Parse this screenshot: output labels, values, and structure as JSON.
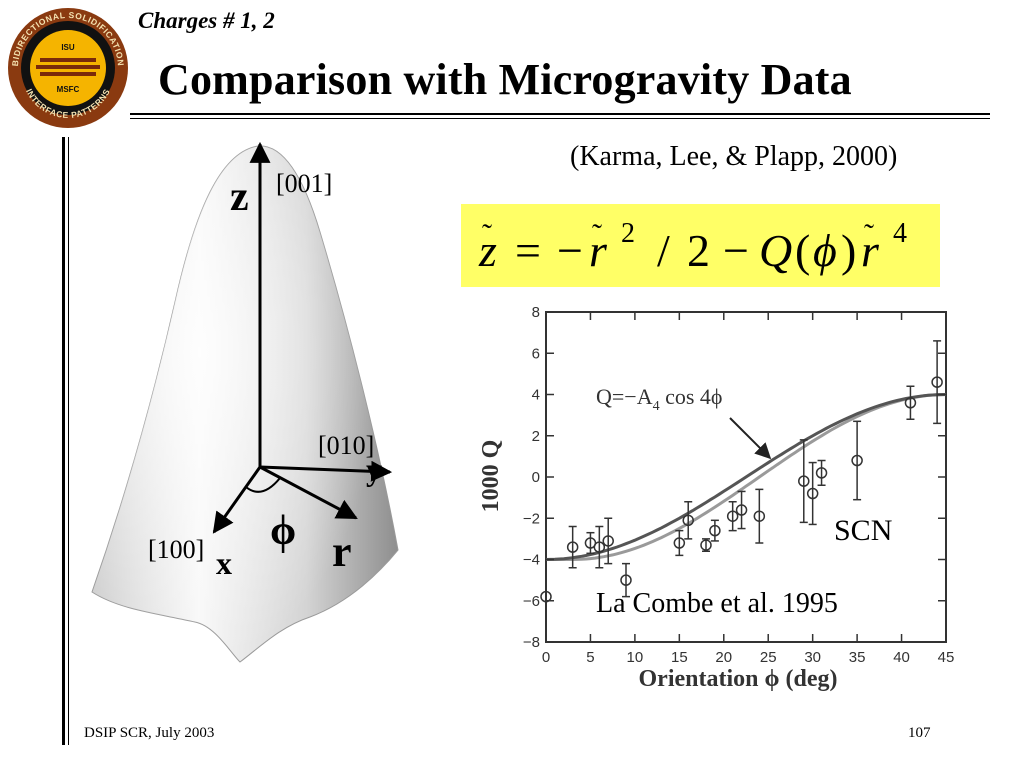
{
  "header": {
    "section_label": "Charges # 1, 2",
    "title": "Comparison with Microgravity Data",
    "logo": {
      "ring_text_top": "BIDIRECTIONAL SOLIDIFICATION",
      "ring_text_bottom": "INTERFACE PATTERNS",
      "center_top": "ISU",
      "center_bottom": "MSFC",
      "ring_color": "#8a3a10",
      "inner_color": "#f5b400"
    }
  },
  "citation": "(Karma, Lee, & Plapp, 2000)",
  "formula": {
    "background": "#ffff66",
    "z": "z",
    "equals": "=",
    "minus": "−",
    "r": "r",
    "exp2": "2",
    "slash": "/",
    "two": "2",
    "Q": "Q",
    "lparen": "(",
    "phi": "ϕ",
    "rparen": ")",
    "exp4": "4",
    "tilde": "˜"
  },
  "dendrite_figure": {
    "z_label": "z",
    "dir_001": "[001]",
    "dir_010": "[010]",
    "y_label": "y",
    "phi_label": "ϕ",
    "r_label": "r",
    "dir_100": "[100]",
    "x_label": "x"
  },
  "chart_data": {
    "type": "scatter",
    "xlabel": "Orientation ϕ (deg)",
    "ylabel": "1000 Q",
    "xlim": [
      0,
      45
    ],
    "ylim": [
      -8,
      8
    ],
    "x_ticks": [
      "0",
      "5",
      "10",
      "15",
      "20",
      "25",
      "30",
      "35",
      "40",
      "45"
    ],
    "y_ticks": [
      "−8",
      "−6",
      "−4",
      "−2",
      "0",
      "2",
      "4",
      "6",
      "8"
    ],
    "curve_label": "Q=−A",
    "curve_label_sub": "4",
    "curve_label_tail": " cos 4ϕ",
    "annotation_scn": "SCN",
    "annotation_source": "La Combe et al. 1995",
    "curves": [
      {
        "style": "dark",
        "expr": "-4cos(4phi)"
      },
      {
        "style": "light",
        "expr": "shifted"
      }
    ],
    "points": [
      {
        "x": 0,
        "y": -5.8,
        "err": 0
      },
      {
        "x": 3,
        "y": -3.4,
        "err": 1.0
      },
      {
        "x": 5,
        "y": -3.2,
        "err": 0.5
      },
      {
        "x": 6,
        "y": -3.4,
        "err": 1.0
      },
      {
        "x": 7,
        "y": -3.1,
        "err": 1.1
      },
      {
        "x": 9,
        "y": -5.0,
        "err": 0.8
      },
      {
        "x": 15,
        "y": -3.2,
        "err": 0.6
      },
      {
        "x": 16,
        "y": -2.1,
        "err": 0.9
      },
      {
        "x": 18,
        "y": -3.3,
        "err": 0.3
      },
      {
        "x": 19,
        "y": -2.6,
        "err": 0.5
      },
      {
        "x": 21,
        "y": -1.9,
        "err": 0.7
      },
      {
        "x": 22,
        "y": -1.6,
        "err": 0.9
      },
      {
        "x": 24,
        "y": -1.9,
        "err": 1.3
      },
      {
        "x": 29,
        "y": -0.2,
        "err": 2.0
      },
      {
        "x": 30,
        "y": -0.8,
        "err": 1.5
      },
      {
        "x": 31,
        "y": 0.2,
        "err": 0.6
      },
      {
        "x": 35,
        "y": 0.8,
        "err": 1.9
      },
      {
        "x": 41,
        "y": 3.6,
        "err": 0.8
      },
      {
        "x": 44,
        "y": 4.6,
        "err": 2.0
      }
    ]
  },
  "footer": {
    "left": "DSIP SCR, July 2003",
    "right": "107"
  }
}
